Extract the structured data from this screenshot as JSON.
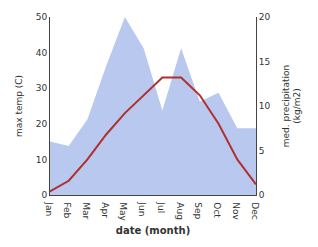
{
  "chart_data": {
    "type": "line",
    "categories": [
      "Jan",
      "Feb",
      "Mar",
      "Apr",
      "May",
      "Jun",
      "Jul",
      "Aug",
      "Sep",
      "Oct",
      "Nov",
      "Dec"
    ],
    "xlabel": "date (month)",
    "ylabel": "max temp (C)",
    "y2label": "med. precipitation\n(kg/m2)",
    "series": [
      {
        "type": "area",
        "axis": "y2",
        "color": "#b8c8ee",
        "values": [
          6.0,
          5.5,
          8.5,
          14.5,
          20.0,
          16.5,
          9.5,
          16.5,
          10.5,
          11.5,
          7.5,
          7.5
        ]
      },
      {
        "type": "line",
        "color": "#b03030",
        "values": [
          1,
          4,
          10,
          17,
          23,
          28,
          33,
          33,
          28,
          20,
          10,
          3
        ]
      }
    ],
    "ylim": [
      0,
      50
    ],
    "yticks": [
      0,
      10,
      20,
      30,
      40,
      50
    ],
    "y2lim": [
      0,
      20
    ],
    "y2ticks": [
      0,
      5,
      10,
      15,
      20
    ],
    "grid": false
  }
}
